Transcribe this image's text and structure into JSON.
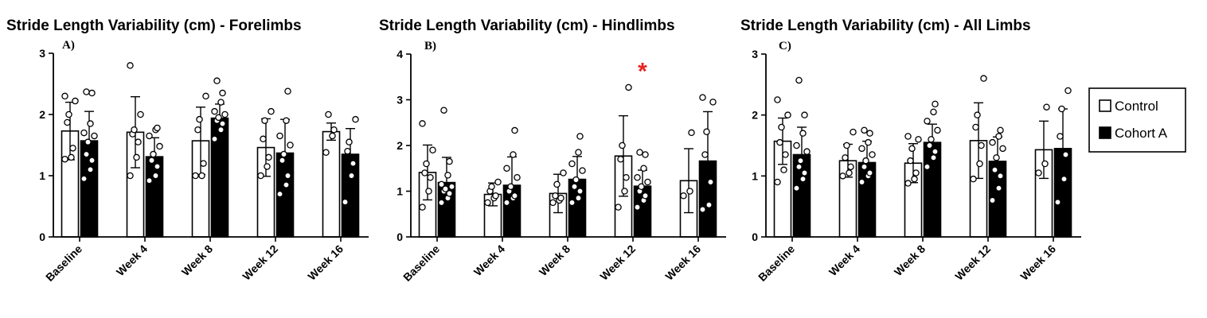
{
  "legend": {
    "position": "right",
    "items": [
      {
        "name": "Control",
        "fill": "#ffffff"
      },
      {
        "name": "Cohort A",
        "fill": "#000000"
      }
    ]
  },
  "chart_data": [
    {
      "type": "bar",
      "panel_label": "A)",
      "title": "Stride Length Variability (cm) - Forelimbs",
      "categories": [
        "Baseline",
        "Week 4",
        "Week 8",
        "Week 12",
        "Week 16"
      ],
      "ylim": [
        0,
        3
      ],
      "yticks": [
        0,
        1,
        2,
        3
      ],
      "series": [
        {
          "name": "Control",
          "values": [
            1.73,
            1.71,
            1.57,
            1.46,
            1.72
          ],
          "errors": [
            0.47,
            0.58,
            0.55,
            0.47,
            0.14
          ],
          "points": [
            [
              1.27,
              1.3,
              1.45,
              1.87,
              2.0,
              2.22,
              2.3
            ],
            [
              1.0,
              1.3,
              1.55,
              1.68,
              1.75,
              2.0,
              2.8
            ],
            [
              1.0,
              1.0,
              1.2,
              1.75,
              1.92,
              2.3
            ],
            [
              1.0,
              1.15,
              1.3,
              1.6,
              1.9,
              2.05
            ],
            [
              1.38,
              1.65,
              1.75,
              2.0
            ]
          ]
        },
        {
          "name": "Cohort A",
          "values": [
            1.57,
            1.31,
            1.94,
            1.37,
            1.35
          ],
          "errors": [
            0.48,
            0.31,
            0.23,
            0.55,
            0.42
          ],
          "points": [
            [
              0.95,
              1.1,
              1.25,
              1.35,
              1.55,
              1.65,
              1.7,
              1.85,
              2.35,
              2.37
            ],
            [
              0.92,
              1.0,
              1.15,
              1.25,
              1.35,
              1.48,
              1.65,
              1.75,
              1.78
            ],
            [
              1.6,
              1.75,
              1.85,
              1.9,
              1.95,
              2.0,
              2.05,
              2.2,
              2.35,
              2.55
            ],
            [
              0.7,
              0.85,
              1.0,
              1.25,
              1.35,
              1.5,
              1.65,
              1.9,
              2.38
            ],
            [
              0.57,
              1.0,
              1.2,
              1.4,
              1.55,
              1.92
            ]
          ]
        }
      ],
      "annotations": []
    },
    {
      "type": "bar",
      "panel_label": "B)",
      "title": "Stride Length Variability (cm) - Hindlimbs",
      "categories": [
        "Baseline",
        "Week 4",
        "Week 8",
        "Week 12",
        "Week 16"
      ],
      "ylim": [
        0,
        4
      ],
      "yticks": [
        0,
        1,
        2,
        3,
        4
      ],
      "series": [
        {
          "name": "Control",
          "values": [
            1.41,
            0.93,
            0.95,
            1.77,
            1.23
          ],
          "errors": [
            0.6,
            0.25,
            0.42,
            0.88,
            0.7
          ],
          "points": [
            [
              0.65,
              1.0,
              1.3,
              1.4,
              1.6,
              1.9,
              2.48
            ],
            [
              0.75,
              0.85,
              0.9,
              1.0,
              1.1,
              1.2
            ],
            [
              0.75,
              0.8,
              0.85,
              0.9,
              1.15,
              1.4
            ],
            [
              0.65,
              1.0,
              1.3,
              1.7,
              2.0,
              3.27
            ],
            [
              0.9,
              1.0,
              2.28
            ]
          ]
        },
        {
          "name": "Cohort A",
          "values": [
            1.19,
            1.13,
            1.26,
            1.11,
            1.66
          ],
          "errors": [
            0.55,
            0.62,
            0.5,
            0.35,
            1.08
          ],
          "points": [
            [
              0.75,
              0.85,
              0.95,
              1.0,
              1.05,
              1.1,
              1.15,
              1.35,
              1.65,
              2.77
            ],
            [
              0.75,
              0.85,
              0.9,
              1.0,
              1.1,
              1.3,
              1.5,
              1.8,
              2.33
            ],
            [
              0.75,
              0.85,
              1.0,
              1.1,
              1.25,
              1.45,
              1.6,
              1.85,
              2.2
            ],
            [
              0.65,
              0.8,
              0.9,
              1.0,
              1.1,
              1.2,
              1.3,
              1.5,
              1.8,
              1.85
            ],
            [
              0.6,
              0.7,
              1.2,
              1.8,
              2.3,
              2.95,
              3.05
            ]
          ]
        }
      ],
      "annotations": [
        {
          "text": "*",
          "category": "Week 12",
          "y": 3.7,
          "color": "#e8231f"
        }
      ]
    },
    {
      "type": "bar",
      "panel_label": "C)",
      "title": "Stride Length Variability (cm) - All Limbs",
      "categories": [
        "Baseline",
        "Week 4",
        "Week 8",
        "Week 12",
        "Week 16"
      ],
      "ylim": [
        0,
        3
      ],
      "yticks": [
        0,
        1,
        2,
        3
      ],
      "series": [
        {
          "name": "Control",
          "values": [
            1.57,
            1.25,
            1.21,
            1.58,
            1.43
          ],
          "errors": [
            0.38,
            0.27,
            0.32,
            0.62,
            0.47
          ],
          "points": [
            [
              0.9,
              1.1,
              1.35,
              1.55,
              1.8,
              2.0,
              2.25
            ],
            [
              1.0,
              1.05,
              1.15,
              1.3,
              1.5,
              1.72
            ],
            [
              0.88,
              0.95,
              1.05,
              1.25,
              1.45,
              1.6,
              1.65
            ],
            [
              0.95,
              1.2,
              1.5,
              1.8,
              2.0,
              2.6
            ],
            [
              1.05,
              1.2,
              2.13
            ]
          ]
        },
        {
          "name": "Cohort A",
          "values": [
            1.35,
            1.22,
            1.55,
            1.24,
            1.45
          ],
          "errors": [
            0.45,
            0.35,
            0.3,
            0.4,
            0.65
          ],
          "points": [
            [
              0.8,
              0.95,
              1.05,
              1.15,
              1.25,
              1.4,
              1.5,
              1.7,
              2.0,
              2.57
            ],
            [
              0.9,
              1.0,
              1.05,
              1.15,
              1.25,
              1.35,
              1.45,
              1.55,
              1.7,
              1.75
            ],
            [
              1.15,
              1.3,
              1.4,
              1.5,
              1.6,
              1.75,
              1.9,
              2.05,
              2.18
            ],
            [
              0.6,
              0.8,
              1.0,
              1.1,
              1.3,
              1.45,
              1.55,
              1.65,
              1.75
            ],
            [
              0.57,
              0.95,
              1.35,
              1.65,
              2.1,
              2.4
            ]
          ]
        }
      ],
      "annotations": []
    }
  ]
}
